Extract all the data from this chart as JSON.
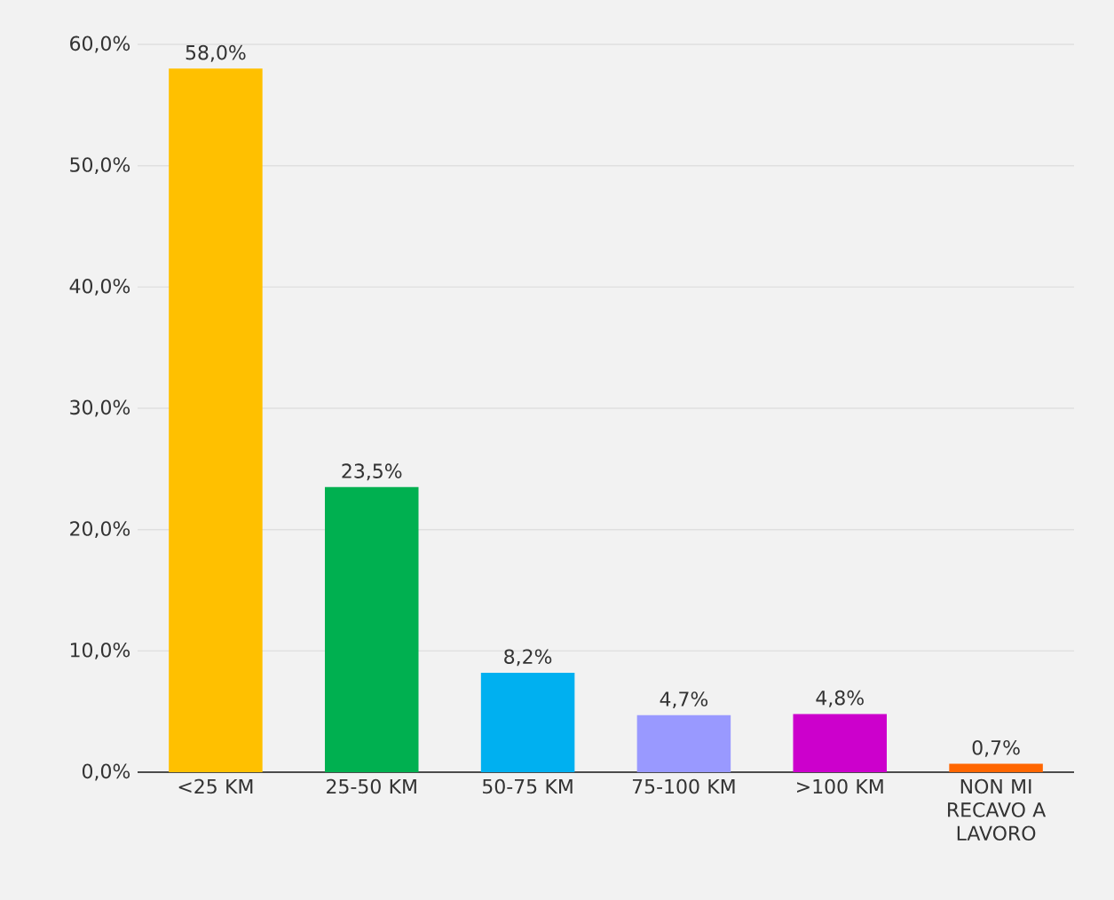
{
  "chart_data": {
    "type": "bar",
    "categories": [
      "<25 KM",
      "25-50 KM",
      "50-75 KM",
      "75-100 KM",
      ">100 KM",
      "NON MI RECAVO A LAVORO"
    ],
    "values": [
      58.0,
      23.5,
      8.2,
      4.7,
      4.8,
      0.7
    ],
    "colors": [
      "#ffc000",
      "#00b050",
      "#00b0f0",
      "#9999ff",
      "#cc00cc",
      "#ff6600"
    ],
    "value_labels": [
      "58,0%",
      "23,5%",
      "8,2%",
      "4,7%",
      "4,8%",
      "0,7%"
    ],
    "ylim": [
      0,
      60
    ],
    "yticks": [
      {
        "value": 0,
        "label": "0,0%"
      },
      {
        "value": 10,
        "label": "10,0%"
      },
      {
        "value": 20,
        "label": "20,0%"
      },
      {
        "value": 30,
        "label": "30,0%"
      },
      {
        "value": 40,
        "label": "40,0%"
      },
      {
        "value": 50,
        "label": "50,0%"
      },
      {
        "value": 60,
        "label": "60,0%"
      }
    ],
    "grid": "y"
  }
}
